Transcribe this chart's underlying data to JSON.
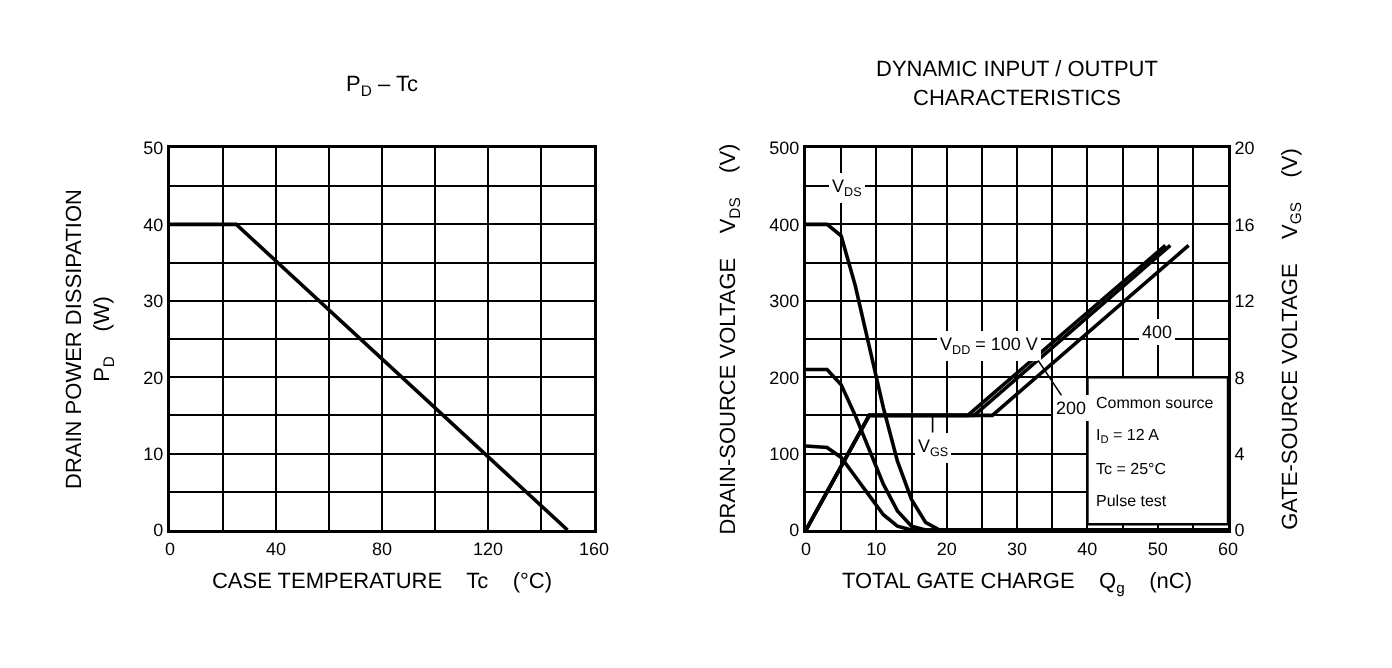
{
  "chart_data": [
    {
      "type": "line",
      "title": "P$_{D}$ – Tc",
      "xlabel": "CASE TEMPERATURE    Tc    (°C)",
      "ylabel": "DRAIN POWER DISSIPATION\nP$_{D}$    (W)",
      "x": [
        0,
        25,
        150
      ],
      "series": [
        {
          "color": "#000000",
          "values": [
            40,
            40,
            0
          ]
        }
      ],
      "xlim": [
        0,
        160
      ],
      "xticks": [
        0,
        {
          "value": 20,
          "label": null
        },
        40,
        {
          "value": 60,
          "label": null
        },
        80,
        {
          "value": 100,
          "label": null
        },
        120,
        {
          "value": 140,
          "label": null
        },
        160
      ],
      "ylim": [
        0,
        50
      ],
      "yticks": [
        0,
        {
          "value": 5,
          "label": null
        },
        10,
        {
          "value": 15,
          "label": null
        },
        20,
        {
          "value": 25,
          "label": null
        },
        30,
        {
          "value": 35,
          "label": null
        },
        40,
        {
          "value": 45,
          "label": null
        },
        50
      ],
      "grid": true,
      "line_style": "solid"
    },
    {
      "type": "line",
      "title": "DYNAMIC INPUT / OUTPUT\nCHARACTERISTICS",
      "xlabel": "TOTAL GATE CHARGE    Q$_{g}$    (nC)",
      "ylabel": "DRAIN-SOURCE VOLTAGE    V$_{DS}$    (V)",
      "y2label": "GATE-SOURCE VOLTAGE    V$_{GS}$    (V)",
      "series": [
        {
          "color": "#000000",
          "x": [
            0,
            3,
            5,
            7,
            9,
            11,
            13,
            15,
            17,
            19,
            60
          ],
          "values": [
            400,
            400,
            385,
            320,
            240,
            160,
            90,
            40,
            10,
            0,
            0
          ]
        },
        {
          "color": "#000000",
          "x": [
            0,
            3,
            5,
            7,
            9,
            11,
            13,
            15,
            17,
            60
          ],
          "values": [
            210,
            210,
            190,
            150,
            105,
            60,
            25,
            5,
            0,
            0
          ]
        },
        {
          "color": "#000000",
          "x": [
            0,
            3,
            5,
            7,
            9,
            11,
            13,
            15,
            60
          ],
          "values": [
            110,
            108,
            95,
            70,
            45,
            20,
            5,
            0,
            0
          ]
        },
        {
          "color": "#000000",
          "axis": "y2",
          "x": [
            0,
            9,
            23,
            51.1
          ],
          "values": [
            0,
            6,
            6,
            14.9
          ]
        },
        {
          "color": "#000000",
          "axis": "y2",
          "x": [
            0,
            9,
            23.9,
            51.8
          ],
          "values": [
            0,
            6,
            6,
            14.9
          ]
        },
        {
          "color": "#000000",
          "axis": "y2",
          "x": [
            0,
            9,
            26.5,
            54.4
          ],
          "values": [
            0,
            6,
            6,
            14.9
          ]
        }
      ],
      "annotations": [
        {
          "text": "V$_{DS}$",
          "x": 3,
          "y": 400
        },
        {
          "text": "V$_{GS}$",
          "x": 18,
          "y": 150
        },
        {
          "text": "V$_{DD}$ = 100 V",
          "x": 34.4,
          "y": 240
        },
        {
          "text": "200",
          "x": 33,
          "y": 222
        },
        {
          "text": "400",
          "x": 40.3,
          "y": 260
        },
        "Common source",
        "I$_{D}$ = 12 A",
        "Tc = 25°C",
        "Pulse test"
      ],
      "xlim": [
        0,
        60
      ],
      "xticks": [
        0,
        {
          "value": 5,
          "label": null
        },
        10,
        {
          "value": 15,
          "label": null
        },
        20,
        {
          "value": 25,
          "label": null
        },
        30,
        {
          "value": 35,
          "label": null
        },
        40,
        {
          "value": 45,
          "label": null
        },
        50,
        {
          "value": 55,
          "label": null
        },
        60
      ],
      "ylim": [
        0,
        500
      ],
      "yticks": [
        0,
        {
          "value": 50,
          "label": null
        },
        100,
        {
          "value": 150,
          "label": null
        },
        200,
        {
          "value": 250,
          "label": null
        },
        300,
        {
          "value": 350,
          "label": null
        },
        400,
        {
          "value": 450,
          "label": null
        },
        500
      ],
      "y2lim": [
        0,
        20
      ],
      "y2ticks": [
        0,
        4,
        8,
        12,
        16,
        20
      ],
      "grid": true,
      "line_style": "solid"
    }
  ]
}
